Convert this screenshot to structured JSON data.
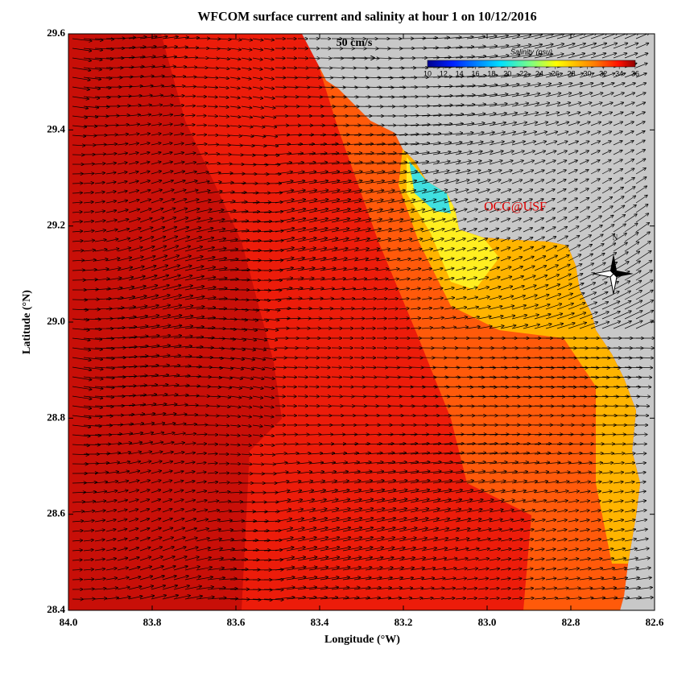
{
  "map": {
    "title": "WFCOM surface current and salinity at hour 1 on 10/12/2016",
    "x_label": "Longitude (°W)",
    "y_label": "Latitude (°N)",
    "xlim": [
      84,
      82.6
    ],
    "ylim": [
      28.4,
      29.6
    ],
    "xticks": [
      {
        "value": 84,
        "label": "84.0"
      },
      83.8,
      83.6,
      83.4,
      83.2,
      {
        "value": 83,
        "label": "83.0"
      },
      82.8,
      82.6
    ],
    "yticks": [
      28.4,
      28.6,
      28.8,
      {
        "value": 29,
        "label": "29.0"
      },
      29.2,
      29.4,
      29.6
    ],
    "scale_arrow_label": "50 cm/s",
    "colorbar": {
      "title": "Salinity (psu)",
      "lim": [
        10,
        36
      ],
      "ticks": [
        10,
        12,
        14,
        16,
        18,
        20,
        22,
        24,
        26,
        28,
        30,
        32,
        34,
        36
      ]
    },
    "watermark": "OCG@USF",
    "compass_label": "N"
  }
}
